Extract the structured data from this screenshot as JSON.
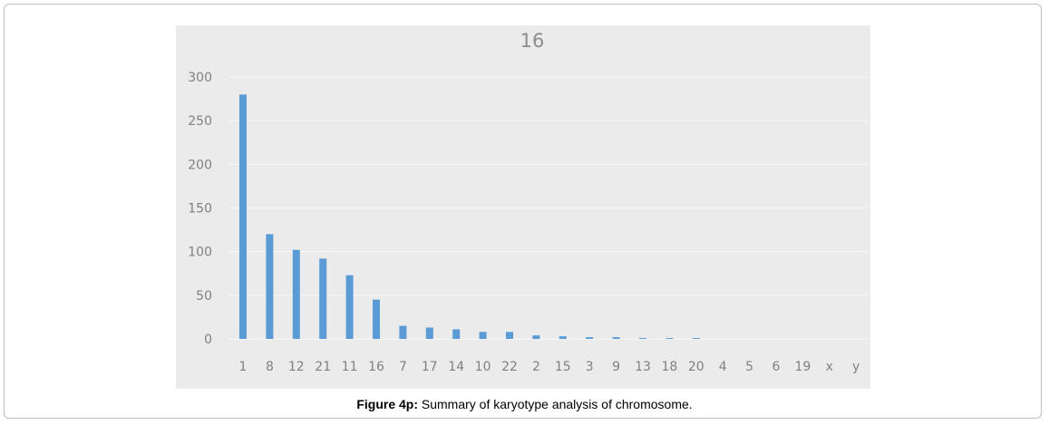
{
  "chart_data": {
    "type": "bar",
    "title": "16",
    "xlabel": "",
    "ylabel": "",
    "ylim": [
      0,
      300
    ],
    "yticks": [
      0,
      50,
      100,
      150,
      200,
      250,
      300
    ],
    "grid": true,
    "legend": "none",
    "categories": [
      "1",
      "8",
      "12",
      "21",
      "11",
      "16",
      "7",
      "17",
      "14",
      "10",
      "22",
      "2",
      "15",
      "3",
      "9",
      "13",
      "18",
      "20",
      "4",
      "5",
      "6",
      "19",
      "x",
      "y"
    ],
    "values": [
      280,
      120,
      102,
      92,
      73,
      45,
      15,
      13,
      11,
      8,
      8,
      4,
      3,
      2,
      2,
      1,
      1,
      1,
      0,
      0,
      0,
      0,
      0,
      0
    ],
    "bar_color": "#5b9bd5",
    "background_color": "#ebebeb",
    "grid_color": "#f7f7f7",
    "text_color": "#808080"
  },
  "caption": {
    "label": "Figure 4p:",
    "text": " Summary of karyotype analysis of chromosome."
  }
}
